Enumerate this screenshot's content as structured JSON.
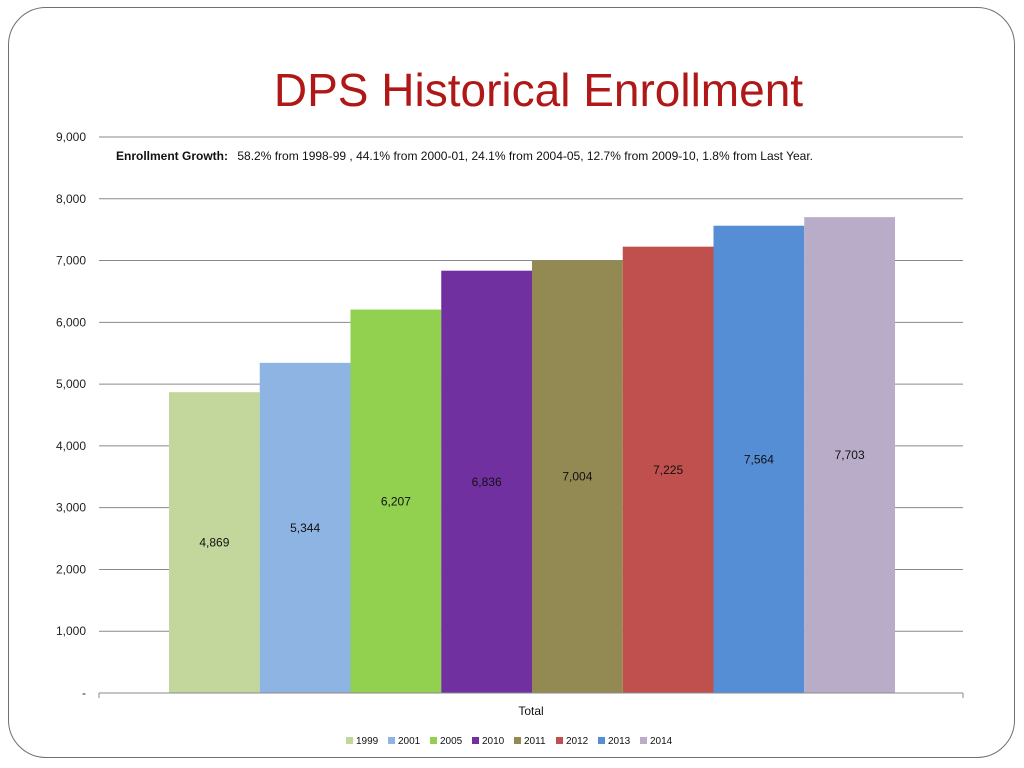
{
  "slide": {
    "title": "DPS Historical Enrollment"
  },
  "chart_data": {
    "type": "bar",
    "categories": [
      "Total"
    ],
    "xlabel": "Total",
    "ylabel": "",
    "ylim": [
      0,
      9000
    ],
    "yticks": [
      0,
      1000,
      2000,
      3000,
      4000,
      5000,
      6000,
      7000,
      8000,
      9000
    ],
    "ytick_labels": [
      "-",
      "1,000",
      "2,000",
      "3,000",
      "4,000",
      "5,000",
      "6,000",
      "7,000",
      "8,000",
      "9,000"
    ],
    "grid": true,
    "legend_position": "bottom",
    "annotation": {
      "label": "Enrollment Growth:",
      "text": "58.2%  from 1998-99 ,  44.1% from 2000-01,  24.1% from 2004-05,  12.7% from 2009-10, 1.8% from Last Year."
    },
    "series": [
      {
        "name": "1999",
        "value": 4869,
        "label": "4,869",
        "color": "#c3d69b"
      },
      {
        "name": "2001",
        "value": 5344,
        "label": "5,344",
        "color": "#8eb4e3"
      },
      {
        "name": "2005",
        "value": 6207,
        "label": "6,207",
        "color": "#92d050"
      },
      {
        "name": "2010",
        "value": 6836,
        "label": "6,836",
        "color": "#7030a0"
      },
      {
        "name": "2011",
        "value": 7004,
        "label": "7,004",
        "color": "#938953"
      },
      {
        "name": "2012",
        "value": 7225,
        "label": "7,225",
        "color": "#c0504d"
      },
      {
        "name": "2013",
        "value": 7564,
        "label": "7,564",
        "color": "#558ed5"
      },
      {
        "name": "2014",
        "value": 7703,
        "label": "7,703",
        "color": "#b9acc9"
      }
    ]
  }
}
